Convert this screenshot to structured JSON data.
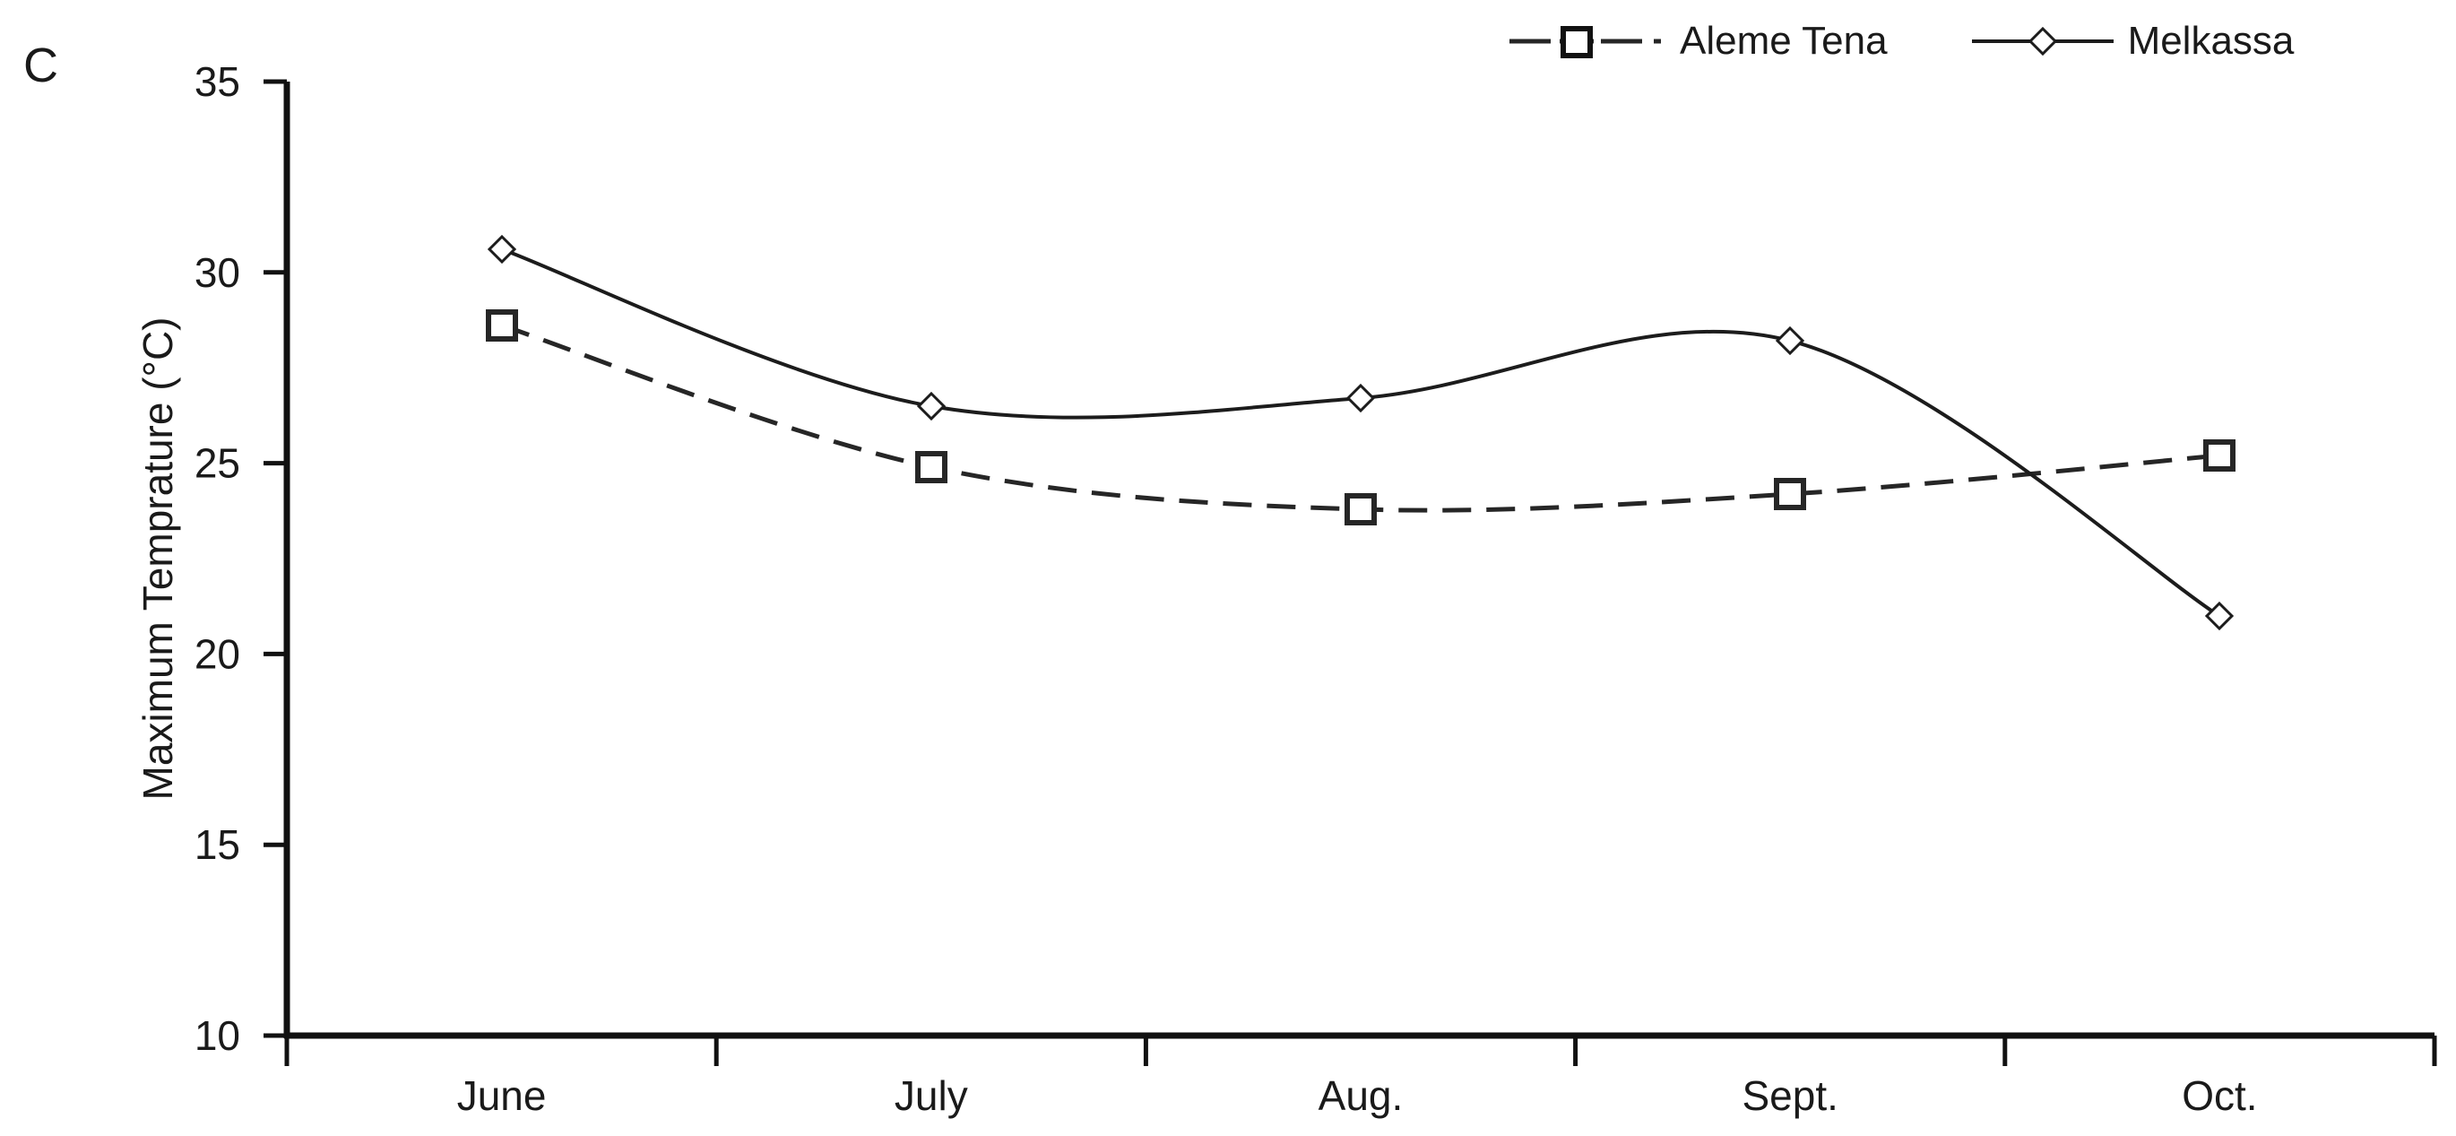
{
  "panel_label": "C",
  "chart_data": {
    "type": "line",
    "title": "",
    "xlabel": "",
    "ylabel": "Maximum Temprature (°C)",
    "categories": [
      "June",
      "July",
      "Aug.",
      "Sept.",
      "Oct."
    ],
    "series": [
      {
        "name": "Aleme Tena",
        "values": [
          28.6,
          24.9,
          23.8,
          24.2,
          25.2
        ],
        "line_style": "dashed",
        "marker": "square",
        "color": "#262626"
      },
      {
        "name": "Melkassa",
        "values": [
          30.6,
          26.5,
          26.7,
          28.2,
          21.0
        ],
        "line_style": "solid",
        "marker": "diamond",
        "color": "#1c1c1c"
      }
    ],
    "ylim": [
      10,
      35
    ],
    "yticks": [
      10,
      15,
      20,
      25,
      30,
      35
    ],
    "grid": false,
    "legend_position": "top-right",
    "axis_color": "#111111",
    "text_color": "#1a1a1a",
    "smooth_lines": true
  }
}
